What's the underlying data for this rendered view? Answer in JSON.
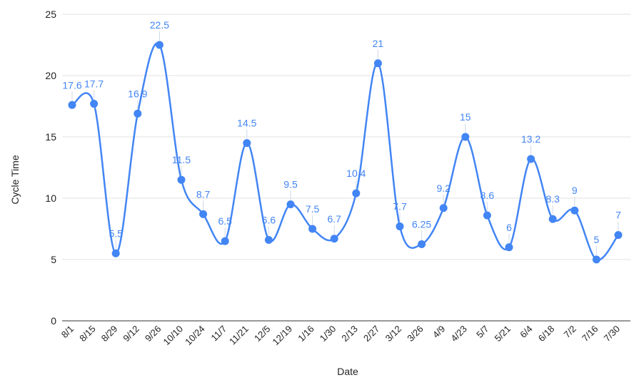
{
  "chart_data": {
    "type": "line",
    "title": "",
    "xlabel": "Date",
    "ylabel": "Cycle Time",
    "categories": [
      "8/1",
      "8/15",
      "8/29",
      "9/12",
      "9/26",
      "10/10",
      "10/24",
      "11/7",
      "11/21",
      "12/5",
      "12/19",
      "1/16",
      "1/30",
      "2/13",
      "2/27",
      "3/12",
      "3/26",
      "4/9",
      "4/23",
      "5/7",
      "5/21",
      "6/4",
      "6/18",
      "7/2",
      "7/16",
      "7/30"
    ],
    "series": [
      {
        "name": "",
        "color": "#4285f4",
        "values": [
          17.6,
          17.7,
          5.5,
          16.9,
          22.5,
          11.5,
          8.7,
          6.5,
          14.5,
          6.6,
          9.5,
          7.5,
          6.7,
          10.4,
          21,
          7.7,
          6.25,
          9.2,
          15,
          8.6,
          6,
          13.2,
          8.3,
          9,
          5,
          7
        ],
        "labels": [
          "17.6",
          "17.7",
          "5.5",
          "16.9",
          "22.5",
          "11.5",
          "8.7",
          "6.5",
          "14.5",
          "6.6",
          "9.5",
          "7.5",
          "6.7",
          "10.4",
          "21",
          "7.7",
          "6.25",
          "9.2",
          "15",
          "8.6",
          "6",
          "13.2",
          "8.3",
          "9",
          "5",
          "7"
        ]
      }
    ],
    "ylim": [
      0,
      25
    ],
    "yticks": [
      0,
      5,
      10,
      15,
      20,
      25
    ],
    "grid": true,
    "smooth": true,
    "markers": true,
    "data_labels": true,
    "legend": "none"
  }
}
